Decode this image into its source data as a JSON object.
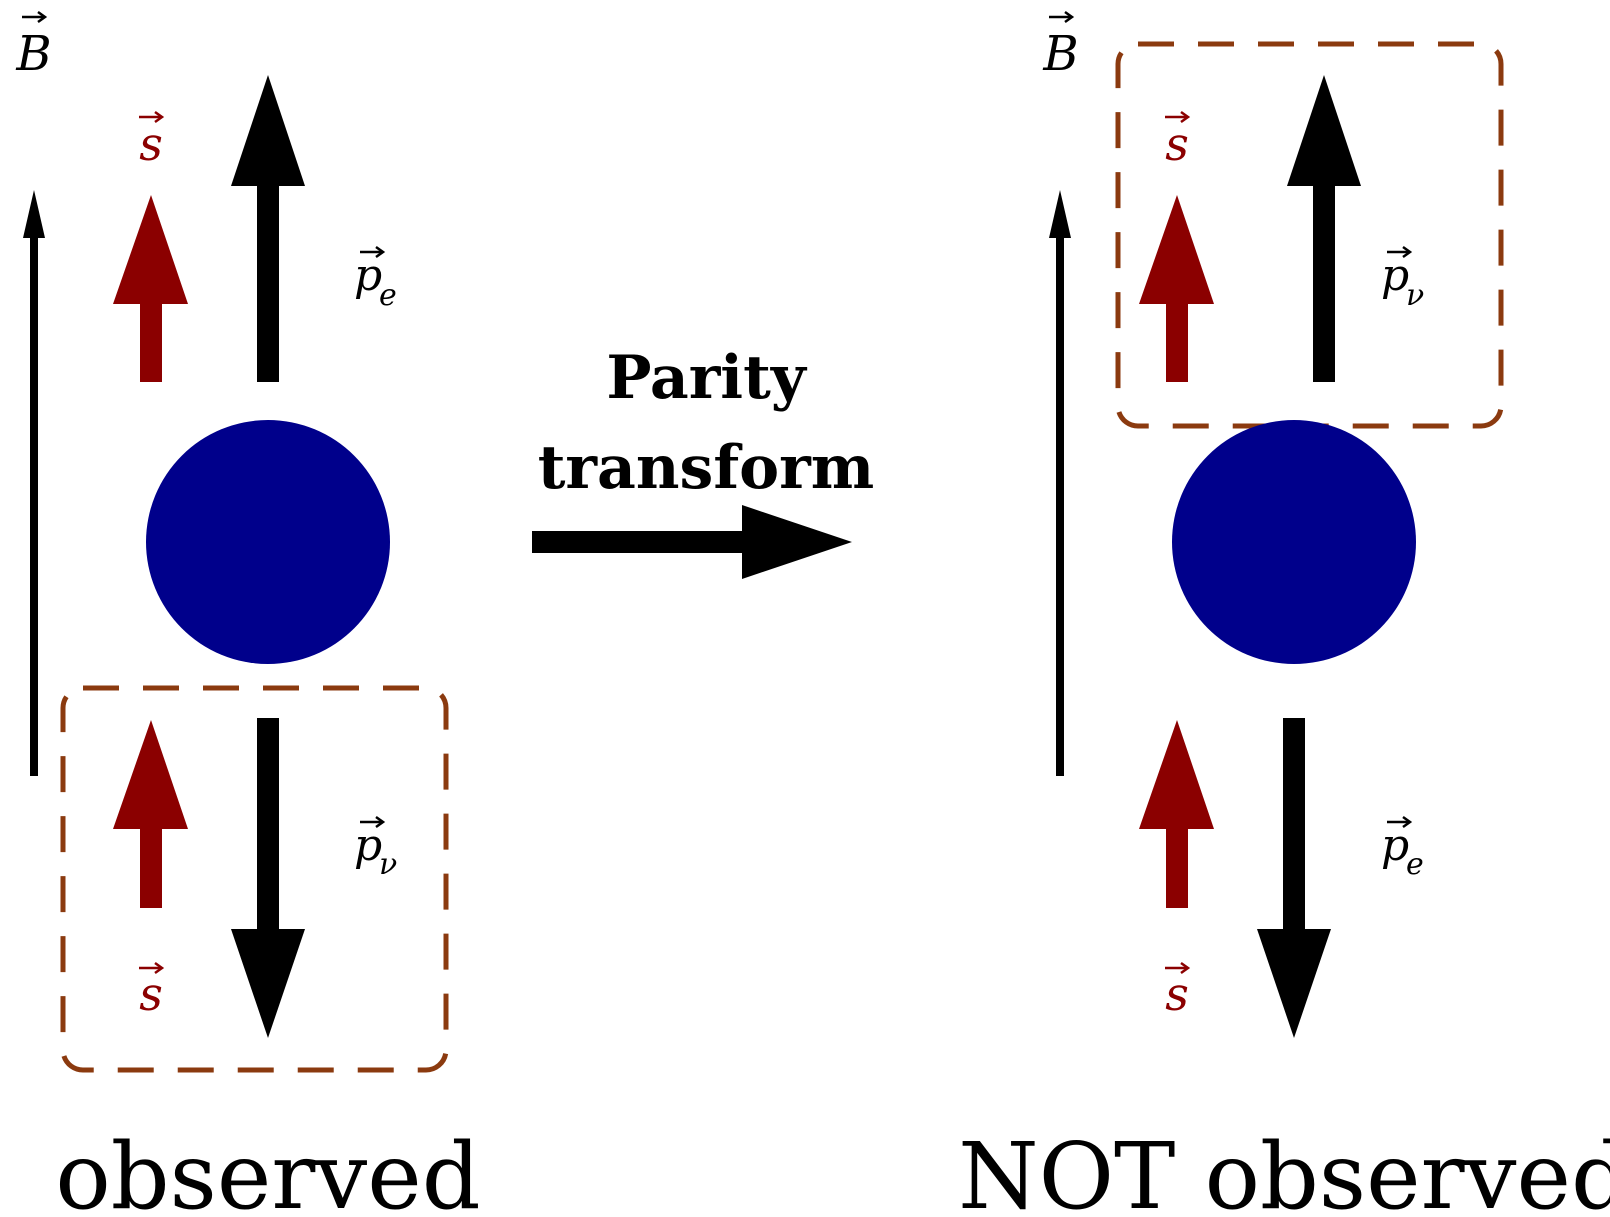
{
  "transform": {
    "line1": "Parity",
    "line2": "transform"
  },
  "colors": {
    "nucleus": "#00008B",
    "spin": "#8B0000",
    "box": "#8B3A0F",
    "arrow": "#000000"
  },
  "left": {
    "field_label": "B",
    "spin_top_label": "s",
    "spin_bottom_label": "s",
    "top_momentum": {
      "base": "p",
      "sub": "e"
    },
    "bottom_momentum": {
      "base": "p",
      "sub": "ν"
    },
    "caption": "observed"
  },
  "right": {
    "field_label": "B",
    "spin_top_label": "s",
    "spin_bottom_label": "s",
    "top_momentum": {
      "base": "p",
      "sub": "ν"
    },
    "bottom_momentum": {
      "base": "p",
      "sub": "e"
    },
    "caption": "NOT observed"
  }
}
